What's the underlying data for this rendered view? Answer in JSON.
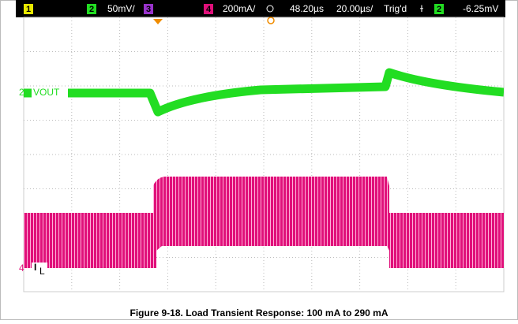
{
  "header": {
    "ch1": "1",
    "ch2": "2",
    "ch2_scale": "50mV/",
    "ch3": "3",
    "ch4": "4",
    "ch4_scale": "200mA/",
    "delay": "48.20µs",
    "timebase": "20.00µs/",
    "trigger_status": "Trig'd",
    "trigger_source": "2",
    "trigger_level": "-6.25mV"
  },
  "traces": {
    "vout_marker": "2",
    "vout": "VOUT",
    "il_marker": "4",
    "il": "I",
    "il_sub": "L"
  },
  "caption": "Figure 9-18. Load Transient Response: 100 mA to 290 mA"
}
